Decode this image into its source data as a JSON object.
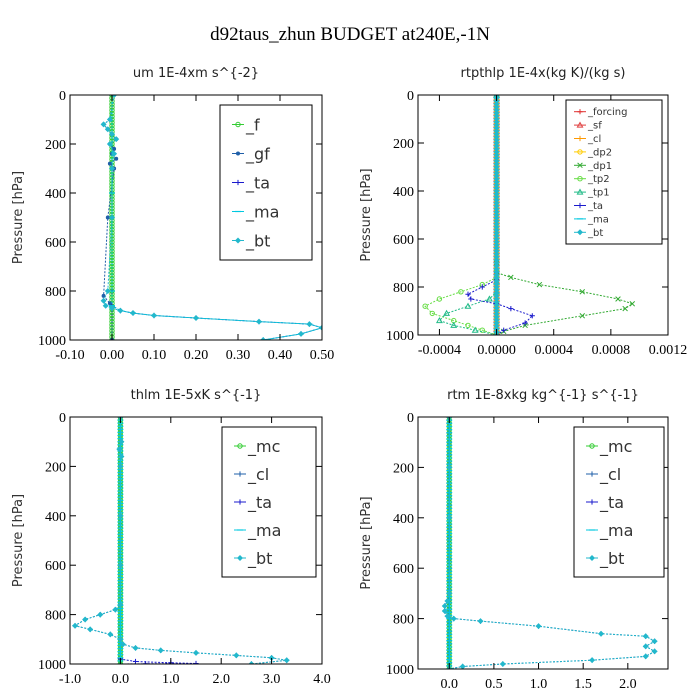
{
  "figure": {
    "title": "d92taus_zhun  BUDGET at240E,-1N"
  },
  "chart_data": [
    {
      "type": "line",
      "title": "um   1E-4xm s^{-2}",
      "ylabel": "Pressure [hPa]",
      "xlim": [
        -0.1,
        0.5
      ],
      "ylim": [
        1000,
        0
      ],
      "xticks": [
        "-0.10",
        "0.00",
        "0.10",
        "0.20",
        "0.30",
        "0.40",
        "0.50"
      ],
      "yticks": [
        "0",
        "200",
        "400",
        "600",
        "800",
        "1000"
      ],
      "legend_style": "large",
      "series": [
        {
          "name": "_f",
          "color": "#33cc33",
          "marker": "circle",
          "x": [
            0,
            0,
            0,
            0,
            0,
            0,
            0,
            0,
            0,
            0,
            0
          ],
          "y": [
            0,
            100,
            200,
            300,
            400,
            500,
            600,
            700,
            800,
            900,
            1000
          ]
        },
        {
          "name": "_gf",
          "color": "#1f5fa8",
          "marker": "dot",
          "x": [
            0.005,
            -0.005,
            -0.02,
            -0.01,
            0.0,
            0.01,
            -0.005,
            0.005,
            0.0,
            0.01,
            -0.005,
            0.005,
            -0.01,
            -0.02,
            -0.005,
            0.0,
            0.0
          ],
          "y": [
            0,
            100,
            120,
            140,
            160,
            180,
            200,
            220,
            240,
            260,
            280,
            300,
            500,
            820,
            850,
            870,
            1000
          ]
        },
        {
          "name": "_ta",
          "color": "#1a1acc",
          "marker": "plus",
          "x": [
            0,
            0,
            0,
            0,
            0.02,
            0.05,
            0.1,
            0.2,
            0.35,
            0.47,
            0.5,
            0.45,
            0.36
          ],
          "y": [
            0,
            400,
            800,
            860,
            880,
            890,
            900,
            910,
            925,
            935,
            950,
            975,
            1000
          ]
        },
        {
          "name": "_ma",
          "color": "#00c8e0",
          "marker": "dash",
          "x": [
            0,
            0,
            0,
            0,
            0.02,
            0.05,
            0.1,
            0.2,
            0.35,
            0.47,
            0.5,
            0.45,
            0.36
          ],
          "y": [
            0,
            400,
            800,
            860,
            880,
            890,
            900,
            910,
            925,
            935,
            950,
            975,
            1000
          ]
        },
        {
          "name": "_bt",
          "color": "#22b8cc",
          "marker": "diamond",
          "x": [
            0.005,
            -0.005,
            -0.02,
            -0.01,
            0.0,
            0.01,
            -0.005,
            0.005,
            0.0,
            0.0,
            -0.01,
            -0.02,
            -0.015,
            0.0,
            0.02,
            0.05,
            0.1,
            0.2,
            0.35,
            0.47,
            0.5,
            0.45,
            0.36
          ],
          "y": [
            0,
            100,
            120,
            140,
            160,
            180,
            200,
            240,
            300,
            500,
            800,
            840,
            860,
            870,
            880,
            890,
            900,
            910,
            925,
            935,
            950,
            975,
            1000
          ]
        }
      ]
    },
    {
      "type": "line",
      "title": "rtpthlp   1E-4x(kg K)/(kg s)",
      "ylabel": "Pressure [hPa]",
      "xlim": [
        -0.00055,
        0.0012
      ],
      "ylim": [
        1000,
        0
      ],
      "xticks": [
        "-0.0004",
        "0.0000",
        "0.0004",
        "0.0008",
        "0.0012"
      ],
      "yticks": [
        "0",
        "200",
        "400",
        "600",
        "800",
        "1000"
      ],
      "legend_style": "small",
      "series": [
        {
          "name": "_forcing",
          "color": "#e03030",
          "marker": "plus",
          "x": [
            0,
            0,
            0,
            0,
            0,
            0,
            0,
            0,
            0,
            0,
            0
          ],
          "y": [
            0,
            100,
            200,
            300,
            400,
            500,
            600,
            700,
            800,
            900,
            1000
          ]
        },
        {
          "name": "_sf",
          "color": "#e04040",
          "marker": "triangle",
          "x": [
            0,
            0,
            0,
            0,
            0,
            0,
            0,
            0,
            0,
            0,
            0
          ],
          "y": [
            0,
            100,
            200,
            300,
            400,
            500,
            600,
            700,
            800,
            900,
            1000
          ]
        },
        {
          "name": "_cl",
          "color": "#ff9900",
          "marker": "plus",
          "x": [
            0,
            0,
            0,
            0,
            0,
            0,
            0,
            0,
            0,
            0,
            0
          ],
          "y": [
            0,
            100,
            200,
            300,
            400,
            500,
            600,
            700,
            800,
            900,
            1000
          ]
        },
        {
          "name": "_dp2",
          "color": "#ffcc00",
          "marker": "circle",
          "x": [
            0,
            0,
            0,
            0,
            0,
            0,
            0,
            0,
            0,
            0,
            0
          ],
          "y": [
            0,
            100,
            200,
            300,
            400,
            500,
            600,
            700,
            800,
            900,
            1000
          ]
        },
        {
          "name": "_dp1",
          "color": "#33aa33",
          "marker": "cross",
          "x": [
            0,
            0,
            0,
            0.0001,
            0.0003,
            0.0006,
            0.00085,
            0.00095,
            0.0009,
            0.0006,
            0.0002,
            5e-05,
            0
          ],
          "y": [
            0,
            700,
            740,
            760,
            790,
            820,
            850,
            870,
            890,
            920,
            960,
            985,
            1000
          ]
        },
        {
          "name": "_tp2",
          "color": "#66dd44",
          "marker": "circle",
          "x": [
            0,
            0,
            0,
            -0.0001,
            -0.00025,
            -0.0004,
            -0.0005,
            -0.00045,
            -0.0003,
            -0.0002,
            -0.0001,
            0
          ],
          "y": [
            0,
            730,
            760,
            790,
            820,
            850,
            880,
            910,
            940,
            960,
            980,
            1000
          ]
        },
        {
          "name": "_tp1",
          "color": "#22bb88",
          "marker": "triangle",
          "x": [
            0,
            0,
            0,
            -5e-05,
            -0.0002,
            -0.00035,
            -0.0004,
            -0.0003,
            -0.00015,
            0
          ],
          "y": [
            0,
            780,
            820,
            850,
            880,
            910,
            940,
            960,
            980,
            1000
          ]
        },
        {
          "name": "_ta",
          "color": "#1a1acc",
          "marker": "plus",
          "x": [
            0,
            0,
            0,
            -0.0001,
            -0.0002,
            -0.00018,
            0,
            0.0001,
            0.00025,
            0.0002,
            5e-05,
            0
          ],
          "y": [
            0,
            740,
            770,
            800,
            830,
            850,
            870,
            890,
            920,
            950,
            980,
            1000
          ]
        },
        {
          "name": "_ma",
          "color": "#00c8e0",
          "marker": "dash",
          "x": [
            0,
            0,
            0,
            0,
            0,
            0,
            0,
            0,
            0,
            0,
            0
          ],
          "y": [
            0,
            100,
            200,
            300,
            400,
            500,
            600,
            700,
            800,
            900,
            1000
          ]
        },
        {
          "name": "_bt",
          "color": "#22b8cc",
          "marker": "diamond",
          "x": [
            0,
            0,
            0,
            0,
            0,
            0,
            0,
            0,
            0,
            0,
            0
          ],
          "y": [
            0,
            100,
            200,
            300,
            400,
            500,
            600,
            700,
            800,
            900,
            1000
          ]
        }
      ]
    },
    {
      "type": "line",
      "title": "thlm   1E-5xK s^{-1}",
      "ylabel": "Pressure [hPa]",
      "xlim": [
        -1.0,
        4.0
      ],
      "ylim": [
        1000,
        0
      ],
      "xticks": [
        "-1.0",
        "0.0",
        "1.0",
        "2.0",
        "3.0",
        "4.0"
      ],
      "yticks": [
        "0",
        "200",
        "400",
        "600",
        "800",
        "1000"
      ],
      "legend_style": "large",
      "series": [
        {
          "name": "_mc",
          "color": "#33cc33",
          "marker": "circle",
          "x": [
            0,
            0,
            0,
            0,
            0,
            0,
            0,
            0,
            0,
            0,
            0
          ],
          "y": [
            0,
            100,
            200,
            300,
            400,
            500,
            600,
            700,
            800,
            900,
            1000
          ]
        },
        {
          "name": "_cl",
          "color": "#1f5fa8",
          "marker": "plus",
          "x": [
            0,
            0.02,
            -0.02,
            0.02,
            0,
            0,
            0,
            0,
            -0.1,
            -0.4,
            -0.7,
            -0.9,
            -0.6,
            -0.2,
            0,
            0.05,
            0.3,
            0.8,
            1.5,
            2.3,
            3.0,
            3.3,
            2.6
          ],
          "y": [
            0,
            100,
            130,
            160,
            200,
            400,
            600,
            760,
            780,
            800,
            820,
            845,
            860,
            880,
            900,
            920,
            935,
            945,
            955,
            965,
            975,
            985,
            1000
          ]
        },
        {
          "name": "_ta",
          "color": "#1a1acc",
          "marker": "plus",
          "x": [
            0,
            0,
            0,
            0,
            0.3,
            1.0,
            1.5,
            0.5,
            0
          ],
          "y": [
            0,
            500,
            900,
            980,
            990,
            995,
            998,
            999,
            1000
          ]
        },
        {
          "name": "_ma",
          "color": "#00c8e0",
          "marker": "dash",
          "x": [
            0,
            0,
            0,
            0,
            0,
            0,
            0,
            0,
            0,
            0,
            0
          ],
          "y": [
            0,
            100,
            200,
            300,
            400,
            500,
            600,
            700,
            800,
            900,
            1000
          ]
        },
        {
          "name": "_bt",
          "color": "#22b8cc",
          "marker": "diamond",
          "x": [
            0,
            0.02,
            -0.02,
            0.02,
            0,
            0,
            0,
            0,
            -0.1,
            -0.4,
            -0.7,
            -0.9,
            -0.6,
            -0.2,
            0,
            0.05,
            0.3,
            0.8,
            1.5,
            2.3,
            3.0,
            3.3,
            2.6
          ],
          "y": [
            0,
            100,
            130,
            160,
            200,
            400,
            600,
            760,
            780,
            800,
            820,
            845,
            860,
            880,
            900,
            920,
            935,
            945,
            955,
            965,
            975,
            985,
            1000
          ]
        }
      ]
    },
    {
      "type": "line",
      "title": "rtm   1E-8xkg kg^{-1} s^{-1}",
      "ylabel": "Pressure [hPa]",
      "xlim": [
        -0.35,
        2.45
      ],
      "ylim": [
        1000,
        0
      ],
      "xticks": [
        "0.0",
        "0.5",
        "1.0",
        "1.5",
        "2.0"
      ],
      "xtick_values": [
        0,
        0.5,
        1.0,
        1.5,
        2.0
      ],
      "yticks": [
        "0",
        "200",
        "400",
        "600",
        "800",
        "1000"
      ],
      "legend_style": "large",
      "series": [
        {
          "name": "_mc",
          "color": "#33cc33",
          "marker": "circle",
          "x": [
            0,
            0,
            0,
            0,
            0,
            0,
            0,
            0,
            0,
            0,
            0
          ],
          "y": [
            0,
            100,
            200,
            300,
            400,
            500,
            600,
            700,
            800,
            900,
            1000
          ]
        },
        {
          "name": "_cl",
          "color": "#1f5fa8",
          "marker": "plus",
          "x": [
            0,
            0,
            0,
            0,
            -0.02,
            -0.05,
            -0.05,
            -0.02,
            0.05,
            0.35,
            1.0,
            1.7,
            2.2,
            2.3,
            2.2,
            2.3,
            2.2,
            1.6,
            0.6,
            0.15,
            0.0
          ],
          "y": [
            0,
            200,
            400,
            700,
            730,
            750,
            770,
            790,
            800,
            810,
            830,
            860,
            870,
            890,
            910,
            930,
            950,
            965,
            980,
            990,
            1000
          ]
        },
        {
          "name": "_ta",
          "color": "#1a1acc",
          "marker": "plus",
          "x": [
            0,
            0,
            0,
            0,
            0,
            0,
            0,
            0,
            0,
            0,
            0
          ],
          "y": [
            0,
            100,
            200,
            300,
            400,
            500,
            600,
            700,
            800,
            900,
            1000
          ]
        },
        {
          "name": "_ma",
          "color": "#00c8e0",
          "marker": "dash",
          "x": [
            0,
            0,
            0,
            0,
            0,
            0,
            0,
            0,
            0,
            0,
            0
          ],
          "y": [
            0,
            100,
            200,
            300,
            400,
            500,
            600,
            700,
            800,
            900,
            1000
          ]
        },
        {
          "name": "_bt",
          "color": "#22b8cc",
          "marker": "diamond",
          "x": [
            0,
            0,
            0,
            0,
            -0.02,
            -0.05,
            -0.05,
            -0.02,
            0.05,
            0.35,
            1.0,
            1.7,
            2.2,
            2.3,
            2.2,
            2.3,
            2.2,
            1.6,
            0.6,
            0.15,
            0.0
          ],
          "y": [
            0,
            200,
            400,
            700,
            730,
            750,
            770,
            790,
            800,
            810,
            830,
            860,
            870,
            890,
            910,
            930,
            950,
            965,
            980,
            990,
            1000
          ]
        }
      ]
    }
  ]
}
